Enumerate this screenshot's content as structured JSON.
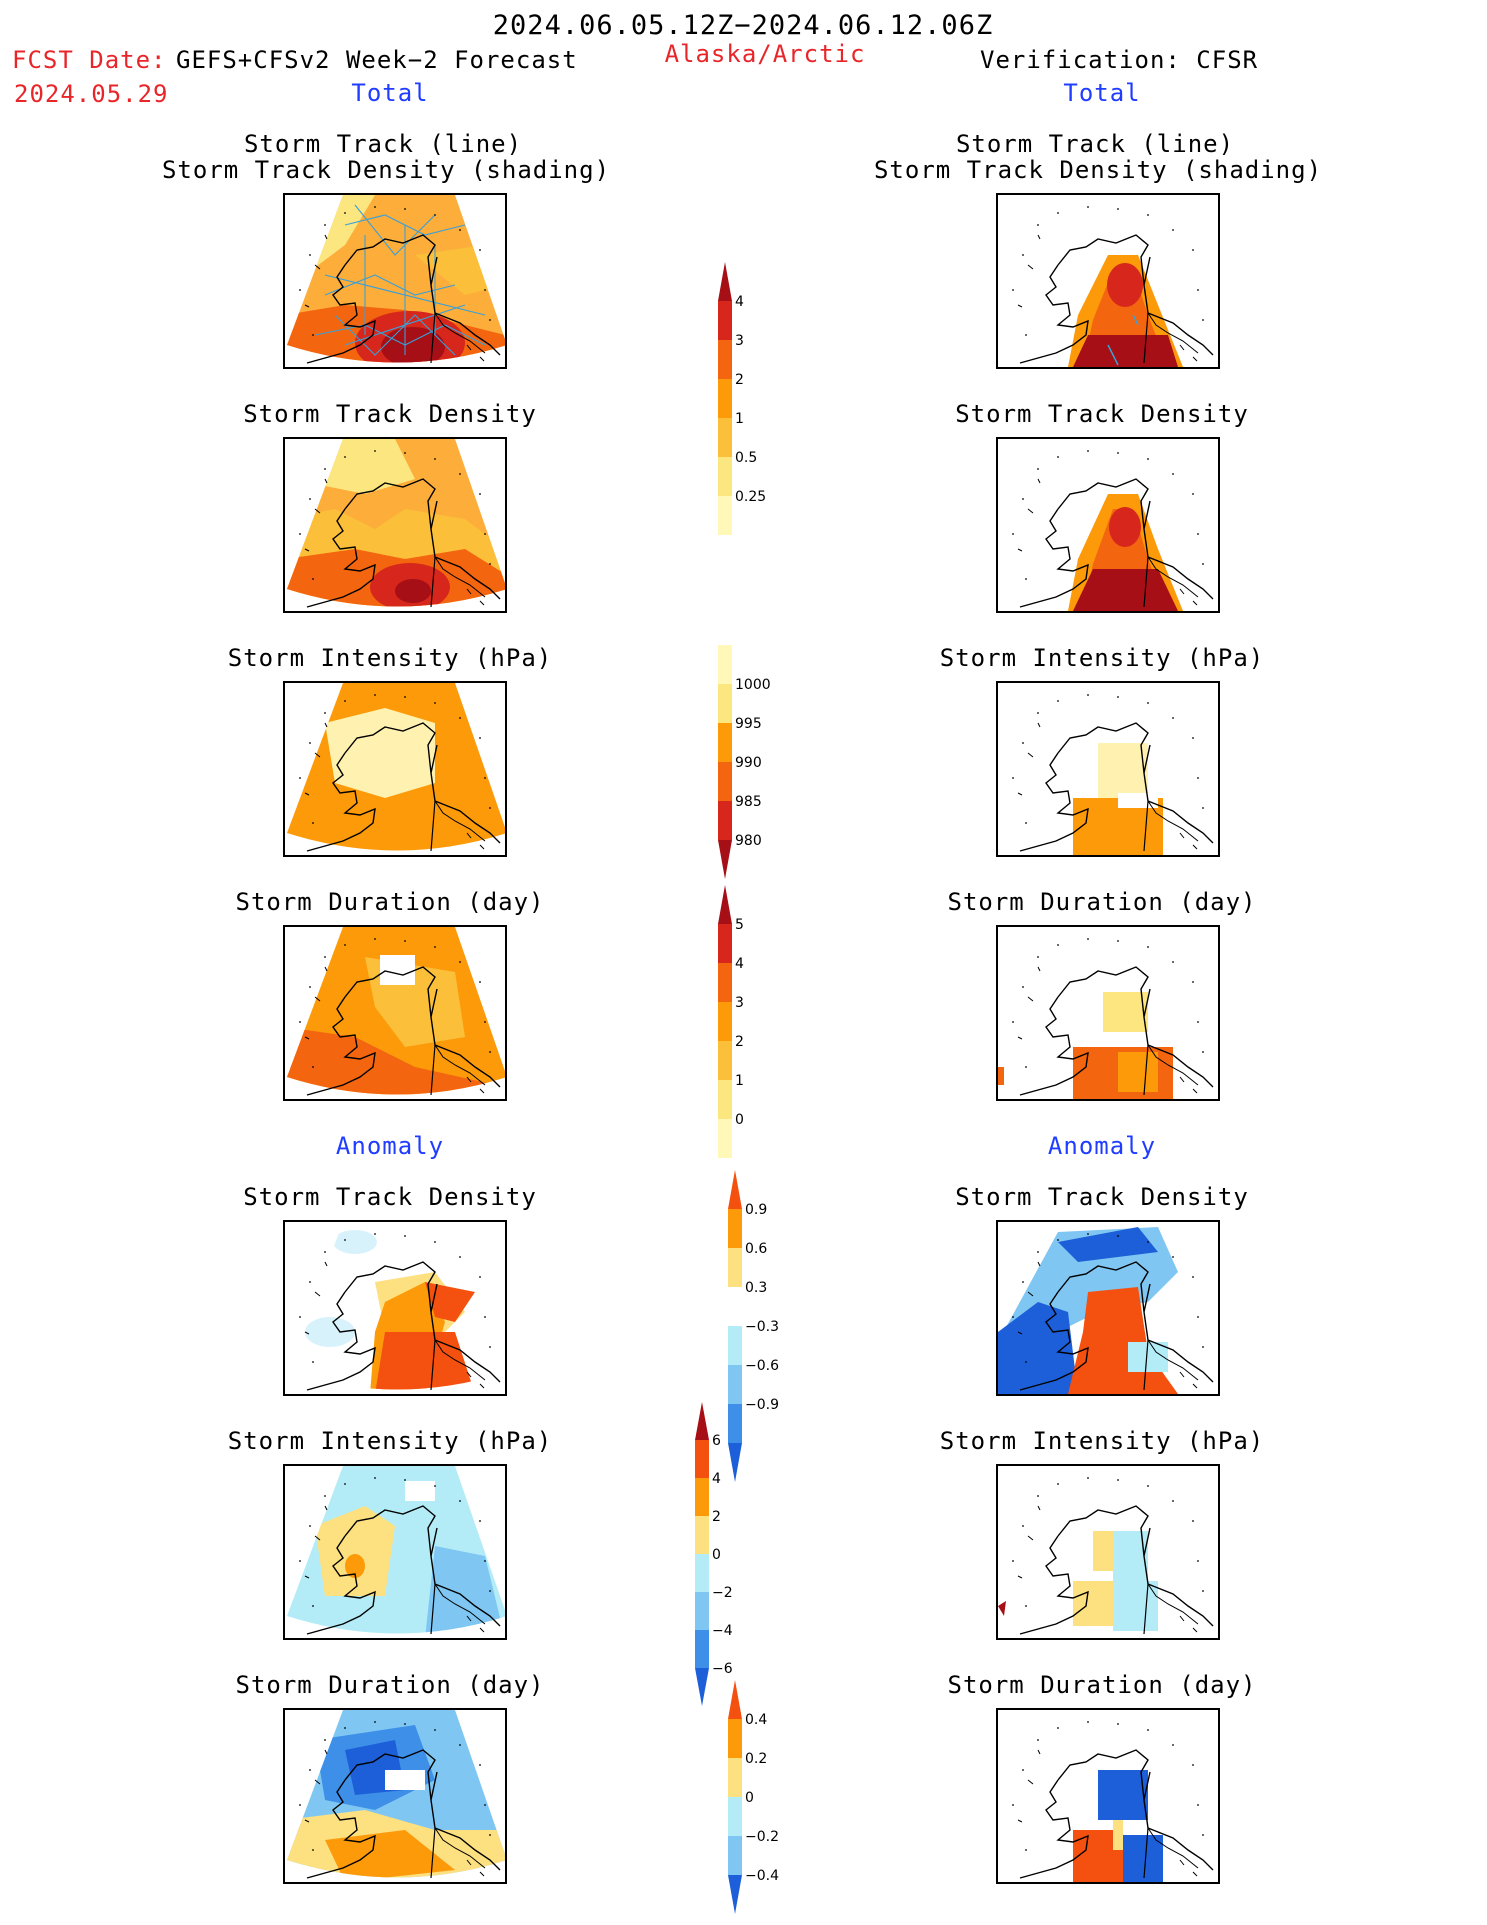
{
  "header": {
    "period": "2024.06.05.12Z−2024.06.12.06Z",
    "fcst_label": "FCST Date:",
    "fcst_model": "GEFS+CFSv2 Week−2 Forecast",
    "fcst_date": "2024.05.29",
    "region": "Alaska/Arctic",
    "verification": "Verification: CFSR"
  },
  "sections": {
    "total": "Total",
    "anomaly": "Anomaly"
  },
  "panel_titles": {
    "track_line": "Storm Track (line)",
    "track_shading": "Storm Track Density (shading)",
    "density": "Storm Track Density",
    "intensity": "Storm Intensity (hPa)",
    "duration": "Storm Duration (day)"
  },
  "colorbars": {
    "total_density": {
      "labels": [
        "4",
        "3",
        "2",
        "1",
        "0.5",
        "0.25"
      ],
      "colors": [
        "#a50f15",
        "#d7261b",
        "#f4650f",
        "#fc9a0a",
        "#fbbf3a",
        "#fce680",
        "#fff8b8"
      ]
    },
    "total_intensity": {
      "labels": [
        "1000",
        "995",
        "990",
        "985",
        "980"
      ],
      "colors": [
        "#fff8b8",
        "#fce680",
        "#fc9a0a",
        "#f4650f",
        "#d7261b",
        "#a50f15"
      ]
    },
    "total_duration": {
      "labels": [
        "5",
        "4",
        "3",
        "2",
        "1",
        "0"
      ],
      "colors": [
        "#a50f15",
        "#d7261b",
        "#f4650f",
        "#fc9a0a",
        "#fbbf3a",
        "#fce680",
        "#fff8b8"
      ]
    },
    "anom_density": {
      "labels": [
        "0.9",
        "0.6",
        "0.3",
        "−0.3",
        "−0.6",
        "−0.9"
      ],
      "colors": [
        "#f4500f",
        "#fc9a0a",
        "#fde080",
        "#ffffff",
        "#b3ecf7",
        "#7fc7f2",
        "#3d8fe8",
        "#1d5fd8"
      ]
    },
    "anom_intensity": {
      "labels": [
        "6",
        "4",
        "2",
        "0",
        "−2",
        "−4",
        "−6"
      ],
      "colors": [
        "#a50f15",
        "#f4500f",
        "#fc9a0a",
        "#fde080",
        "#b3ecf7",
        "#7fc7f2",
        "#3d8fe8",
        "#1d5fd8"
      ]
    },
    "anom_duration": {
      "labels": [
        "0.4",
        "0.2",
        "0",
        "−0.2",
        "−0.4"
      ],
      "colors": [
        "#f4500f",
        "#fc9a0a",
        "#fde080",
        "#b3ecf7",
        "#7fc7f2",
        "#1d5fd8"
      ]
    }
  }
}
